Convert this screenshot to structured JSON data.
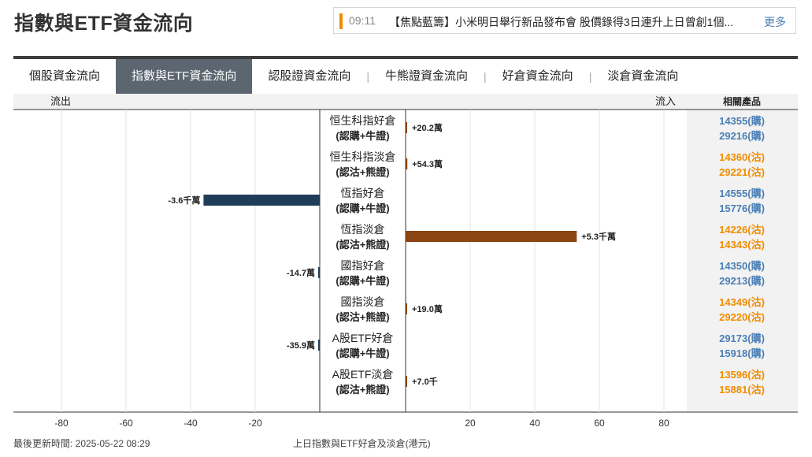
{
  "header": {
    "title": "指數與ETF資金流向"
  },
  "ticker": {
    "time": "09:11",
    "text": "【焦點藍籌】小米明日舉行新品發布會 股價錄得3日連升上日曾創1個...",
    "more_label": "更多"
  },
  "tabs": [
    {
      "label": "個股資金流向",
      "active": false
    },
    {
      "label": "指數與ETF資金流向",
      "active": true
    },
    {
      "label": "認股證資金流向",
      "active": false
    },
    {
      "label": "牛熊證資金流向",
      "active": false
    },
    {
      "label": "好倉資金流向",
      "active": false
    },
    {
      "label": "淡倉資金流向",
      "active": false
    }
  ],
  "colors": {
    "positive": "#8b4513",
    "negative": "#1f3d58",
    "call": "#4a7fb5",
    "put": "#f08c00",
    "products_bg": "#f2f2f2"
  },
  "chart_data": {
    "type": "bar",
    "orientation": "horizontal",
    "header_left": "流出",
    "header_right": "流入",
    "header_products": "相關產品",
    "xlim": [
      -90,
      90
    ],
    "xticks": [
      -80,
      -60,
      -40,
      -20,
      20,
      40,
      60,
      80
    ],
    "rows": [
      {
        "name": "恒生科指好倉",
        "sub": "(認購+牛證)",
        "value": 0.202,
        "label": "+20.2萬",
        "products": [
          {
            "text": "14355(購)",
            "kind": "call"
          },
          {
            "text": "29216(購)",
            "kind": "call"
          }
        ]
      },
      {
        "name": "恒生科指淡倉",
        "sub": "(認沽+熊證)",
        "value": 0.543,
        "label": "+54.3萬",
        "products": [
          {
            "text": "14360(沽)",
            "kind": "put"
          },
          {
            "text": "29221(沽)",
            "kind": "put"
          }
        ]
      },
      {
        "name": "恆指好倉",
        "sub": "(認購+牛證)",
        "value": -36,
        "label": "-3.6千萬",
        "products": [
          {
            "text": "14555(購)",
            "kind": "call"
          },
          {
            "text": "15776(購)",
            "kind": "call"
          }
        ]
      },
      {
        "name": "恆指淡倉",
        "sub": "(認沽+熊證)",
        "value": 53,
        "label": "+5.3千萬",
        "products": [
          {
            "text": "14226(沽)",
            "kind": "put"
          },
          {
            "text": "14343(沽)",
            "kind": "put"
          }
        ]
      },
      {
        "name": "國指好倉",
        "sub": "(認購+牛證)",
        "value": -0.147,
        "label": "-14.7萬",
        "products": [
          {
            "text": "14350(購)",
            "kind": "call"
          },
          {
            "text": "29213(購)",
            "kind": "call"
          }
        ]
      },
      {
        "name": "國指淡倉",
        "sub": "(認沽+熊證)",
        "value": 0.19,
        "label": "+19.0萬",
        "products": [
          {
            "text": "14349(沽)",
            "kind": "put"
          },
          {
            "text": "29220(沽)",
            "kind": "put"
          }
        ]
      },
      {
        "name": "A股ETF好倉",
        "sub": "(認購+牛證)",
        "value": -0.359,
        "label": "-35.9萬",
        "products": [
          {
            "text": "29173(購)",
            "kind": "call"
          },
          {
            "text": "15918(購)",
            "kind": "call"
          }
        ]
      },
      {
        "name": "A股ETF淡倉",
        "sub": "(認沽+熊證)",
        "value": 0.007,
        "label": "+7.0千",
        "products": [
          {
            "text": "13596(沽)",
            "kind": "put"
          },
          {
            "text": "15881(沽)",
            "kind": "put"
          }
        ]
      }
    ]
  },
  "footer": {
    "updated": "最後更新時間: 2025-05-22 08:29",
    "caption": "上日指數與ETF好倉及淡倉(港元)"
  }
}
